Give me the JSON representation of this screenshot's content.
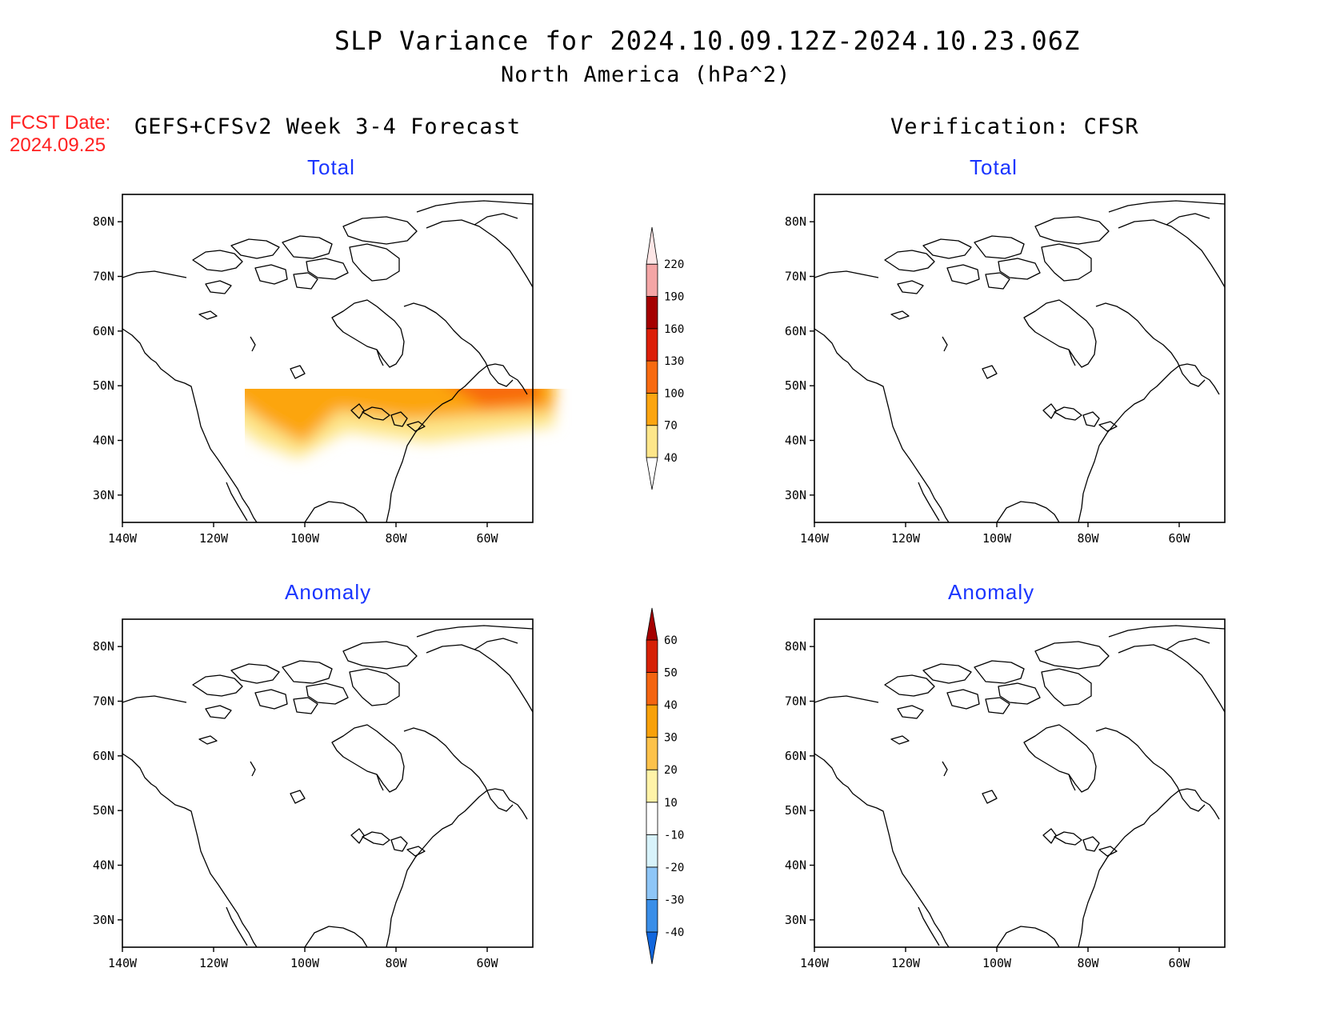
{
  "title": "SLP Variance for 2024.10.09.12Z-2024.10.23.06Z",
  "subtitle": "North America (hPa^2)",
  "fcst_label": "FCST Date:",
  "fcst_date": "2024.09.25",
  "left_header": "GEFS+CFSv2 Week 3-4 Forecast",
  "right_header": "Verification: CFSR",
  "panels": [
    {
      "id": "fcst-total",
      "title": "Total"
    },
    {
      "id": "verif-total",
      "title": "Total"
    },
    {
      "id": "fcst-anomaly",
      "title": "Anomaly"
    },
    {
      "id": "verif-anomaly",
      "title": "Anomaly"
    }
  ],
  "axes": {
    "lon_ticks": [
      "140W",
      "120W",
      "100W",
      "80W",
      "60W"
    ],
    "lon_values": [
      -140,
      -120,
      -100,
      -80,
      -60
    ],
    "lat_ticks": [
      "80N",
      "70N",
      "60N",
      "50N",
      "40N",
      "30N"
    ],
    "lat_values": [
      80,
      70,
      60,
      50,
      40,
      30
    ],
    "lon_range": [
      -140,
      -50
    ],
    "lat_range": [
      25,
      85
    ]
  },
  "colorbars": {
    "total": {
      "labels": [
        "40",
        "70",
        "100",
        "130",
        "160",
        "190",
        "220"
      ],
      "colors": [
        "#fde68a",
        "#fca510",
        "#f86a10",
        "#dc1e08",
        "#a50000",
        "#f4a6a6",
        "#fde6e6"
      ]
    },
    "anomaly": {
      "labels": [
        "-40",
        "-30",
        "-20",
        "-10",
        "10",
        "20",
        "30",
        "40",
        "50",
        "60"
      ],
      "colors": [
        "#1166dd",
        "#3a8ee8",
        "#8ec6f7",
        "#d8f3fb",
        "#ffffff",
        "#fff3a8",
        "#fdc24a",
        "#f8a10a",
        "#f46410",
        "#d62005",
        "#a50000"
      ]
    }
  }
}
